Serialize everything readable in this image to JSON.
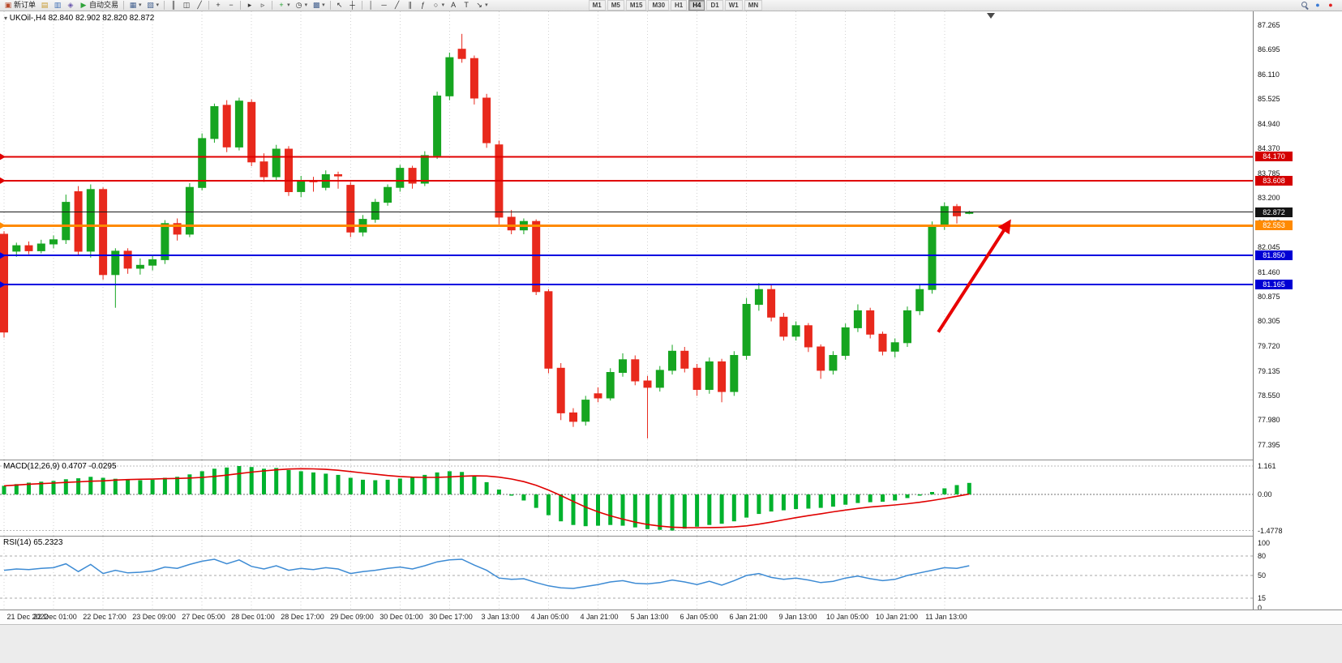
{
  "toolbar": {
    "left": [
      {
        "name": "new-order-button",
        "icon": "new-order-icon",
        "glyph": "▣",
        "glyph_color": "#b84a2b",
        "label": "新订单"
      },
      {
        "name": "market-watch-button",
        "icon": "market-watch-icon",
        "glyph": "▤",
        "glyph_color": "#c79a2e"
      },
      {
        "name": "data-window-button",
        "icon": "data-window-icon",
        "glyph": "▥",
        "glyph_color": "#3f6fb5"
      },
      {
        "name": "navigator-button",
        "icon": "navigator-icon",
        "glyph": "◈",
        "glyph_color": "#6a58ad"
      },
      {
        "name": "autotrading-button",
        "icon": "autotrading-play-icon",
        "glyph": "▶",
        "glyph_color": "#2fa33a",
        "label": "自动交易"
      },
      {
        "sep": true
      },
      {
        "name": "new-chart-button",
        "icon": "new-chart-icon",
        "glyph": "▦",
        "glyph_color": "#44618f",
        "dropdown": true
      },
      {
        "name": "profiles-button",
        "icon": "profiles-icon",
        "glyph": "▧",
        "glyph_color": "#44618f",
        "dropdown": true
      },
      {
        "sep": true
      },
      {
        "name": "bar-chart-button",
        "icon": "bar-chart-icon",
        "glyph": "║",
        "glyph_color": "#333333"
      },
      {
        "name": "candle-chart-button",
        "icon": "candlestick-chart-icon",
        "glyph": "◫",
        "glyph_color": "#333333"
      },
      {
        "name": "line-chart-button",
        "icon": "line-chart-icon",
        "glyph": "╱",
        "glyph_color": "#333333"
      },
      {
        "sep": true
      },
      {
        "name": "zoom-in-button",
        "icon": "zoom-in-icon",
        "glyph": "+",
        "glyph_color": "#333333"
      },
      {
        "name": "zoom-out-button",
        "icon": "zoom-out-icon",
        "glyph": "−",
        "glyph_color": "#333333"
      },
      {
        "sep": true
      },
      {
        "name": "auto-scroll-button",
        "icon": "auto-scroll-icon",
        "glyph": "▸",
        "glyph_color": "#333333"
      },
      {
        "name": "chart-shift-button",
        "icon": "chart-shift-icon",
        "glyph": "▹",
        "glyph_color": "#333333"
      },
      {
        "sep": true
      },
      {
        "name": "indicators-button",
        "icon": "indicators-plus-icon",
        "glyph": "+",
        "glyph_color": "#1d9e2c",
        "dropdown": true
      },
      {
        "name": "periods-button",
        "icon": "clock-icon",
        "glyph": "◷",
        "glyph_color": "#333333",
        "dropdown": true
      },
      {
        "name": "templates-button",
        "icon": "template-chart-icon",
        "glyph": "▩",
        "glyph_color": "#44618f",
        "dropdown": true
      },
      {
        "sep": true
      },
      {
        "name": "cursor-button",
        "icon": "cursor-icon",
        "glyph": "↖",
        "glyph_color": "#333333"
      },
      {
        "name": "crosshair-button",
        "icon": "crosshair-icon",
        "glyph": "┼",
        "glyph_color": "#333333"
      },
      {
        "sep": true
      },
      {
        "name": "vertical-line-button",
        "icon": "vertical-line-icon",
        "glyph": "│",
        "glyph_color": "#333333"
      },
      {
        "name": "horizontal-line-button",
        "icon": "horizontal-line-icon",
        "glyph": "─",
        "glyph_color": "#333333"
      },
      {
        "name": "trendline-button",
        "icon": "trendline-icon",
        "glyph": "╱",
        "glyph_color": "#333333"
      },
      {
        "name": "channel-button",
        "icon": "channel-icon",
        "glyph": "∥",
        "glyph_color": "#333333"
      },
      {
        "name": "fibonacci-button",
        "icon": "fibonacci-icon",
        "glyph": "ƒ",
        "glyph_color": "#333333"
      },
      {
        "name": "shapes-button",
        "icon": "ellipse-icon",
        "glyph": "○",
        "glyph_color": "#333333",
        "dropdown": true
      },
      {
        "name": "text-button",
        "icon": "text-icon",
        "glyph": "A",
        "glyph_color": "#333333"
      },
      {
        "name": "text-label-button",
        "icon": "label-icon",
        "glyph": "T",
        "glyph_color": "#333333"
      },
      {
        "name": "arrows-button",
        "icon": "arrow-icon",
        "glyph": "↘",
        "glyph_color": "#333333",
        "dropdown": true
      }
    ],
    "timeframes": [
      {
        "label": "M1"
      },
      {
        "label": "M5"
      },
      {
        "label": "M15"
      },
      {
        "label": "M30"
      },
      {
        "label": "H1"
      },
      {
        "label": "H4",
        "active": true
      },
      {
        "label": "D1"
      },
      {
        "label": "W1"
      },
      {
        "label": "MN"
      }
    ],
    "right": [
      {
        "name": "search-button",
        "icon": "search-icon",
        "magnifier": true
      },
      {
        "name": "community-button",
        "icon": "community-icon",
        "glyph": "●",
        "glyph_color": "#3a7bd5"
      },
      {
        "name": "record-button",
        "icon": "record-icon",
        "glyph": "●",
        "glyph_color": "#e02020"
      }
    ]
  },
  "chart": {
    "symbol_label": "UKOil-,H4 82.840 82.902 82.820 82.872",
    "macd_label": "MACD(12,26,9) 0.4707 -0.0295",
    "rsi_label": "RSI(14) 65.2323"
  },
  "price_axis": {
    "ticks": [
      "87.265",
      "86.695",
      "86.110",
      "85.525",
      "84.940",
      "84.370",
      "83.785",
      "83.200",
      "82.615",
      "82.045",
      "81.460",
      "80.875",
      "80.305",
      "79.720",
      "79.135",
      "78.550",
      "77.980",
      "77.395"
    ],
    "badges": [
      {
        "value": "84.170",
        "color": "#d40000"
      },
      {
        "value": "83.608",
        "color": "#d40000"
      },
      {
        "value": "82.872",
        "color": "#141414"
      },
      {
        "value": "82.553",
        "color": "#ff8a00"
      },
      {
        "value": "81.850",
        "color": "#0000d4"
      },
      {
        "value": "81.165",
        "color": "#0000d4"
      }
    ],
    "macd_ticks": [
      {
        "label": "1.161",
        "value": 1.161
      },
      {
        "label": "0.00",
        "value": 0
      },
      {
        "label": "-1.4778",
        "value": -1.4778
      }
    ],
    "rsi_ticks": [
      {
        "label": "100",
        "value": 100
      },
      {
        "label": "80",
        "value": 80
      },
      {
        "label": "50",
        "value": 50
      },
      {
        "label": "15",
        "value": 15
      },
      {
        "label": "0",
        "value": 0
      }
    ]
  },
  "hlines": [
    {
      "price": 84.17,
      "color": "#e00000",
      "width": 2,
      "marker": true
    },
    {
      "price": 83.608,
      "color": "#e00000",
      "width": 2,
      "marker": true
    },
    {
      "price": 82.872,
      "color": "#1a1a1a",
      "width": 1,
      "marker": false
    },
    {
      "price": 82.553,
      "color": "#ff8a00",
      "width": 3,
      "marker": true
    },
    {
      "price": 81.85,
      "color": "#0000e0",
      "width": 2,
      "marker": true
    },
    {
      "price": 81.165,
      "color": "#0000e0",
      "width": 2,
      "marker": true
    }
  ],
  "arrow": {
    "from_index": 75.5,
    "from_price": 80.05,
    "to_index": 81.2,
    "to_price": 82.62,
    "color": "#e80000"
  },
  "colors": {
    "up": "#16a520",
    "down": "#e8291c",
    "macd_bar": "#00b22d",
    "macd_signal": "#e00000",
    "rsi_line": "#3d8bd4",
    "grid": "#d2d2d2",
    "arrow": "#e80000"
  },
  "chart_data": {
    "type": "candlestick",
    "symbol": "UKOil-",
    "timeframe": "H4",
    "title": "UKOil-,H4",
    "price_range": [
      77.395,
      87.265
    ],
    "ohlc": [
      [
        82.35,
        82.42,
        79.92,
        80.05
      ],
      [
        81.95,
        82.15,
        81.82,
        82.08
      ],
      [
        82.08,
        82.18,
        81.88,
        81.96
      ],
      [
        81.96,
        82.22,
        81.9,
        82.12
      ],
      [
        82.12,
        82.32,
        82.02,
        82.22
      ],
      [
        82.22,
        83.28,
        82.12,
        83.1
      ],
      [
        83.35,
        83.48,
        81.85,
        81.95
      ],
      [
        81.95,
        83.52,
        81.8,
        83.4
      ],
      [
        83.4,
        83.45,
        81.28,
        81.4
      ],
      [
        81.4,
        82.02,
        80.62,
        81.95
      ],
      [
        81.95,
        82.02,
        81.42,
        81.55
      ],
      [
        81.55,
        81.78,
        81.4,
        81.62
      ],
      [
        81.62,
        81.85,
        81.5,
        81.75
      ],
      [
        81.75,
        82.68,
        81.65,
        82.6
      ],
      [
        82.6,
        82.72,
        82.2,
        82.35
      ],
      [
        82.35,
        83.55,
        82.28,
        83.45
      ],
      [
        83.45,
        84.72,
        83.38,
        84.6
      ],
      [
        84.6,
        85.42,
        84.5,
        85.35
      ],
      [
        85.38,
        85.5,
        84.28,
        84.4
      ],
      [
        84.4,
        85.56,
        84.32,
        85.48
      ],
      [
        85.45,
        85.52,
        83.95,
        84.05
      ],
      [
        84.05,
        84.25,
        83.58,
        83.7
      ],
      [
        83.7,
        84.45,
        83.62,
        84.35
      ],
      [
        84.35,
        84.42,
        83.25,
        83.35
      ],
      [
        83.35,
        83.72,
        83.22,
        83.6
      ],
      [
        83.6,
        83.7,
        83.35,
        83.58
      ],
      [
        83.45,
        83.85,
        83.38,
        83.75
      ],
      [
        83.75,
        83.82,
        83.42,
        83.72
      ],
      [
        83.5,
        83.58,
        82.28,
        82.4
      ],
      [
        82.4,
        82.8,
        82.3,
        82.7
      ],
      [
        82.7,
        83.18,
        82.62,
        83.1
      ],
      [
        83.1,
        83.52,
        83.02,
        83.45
      ],
      [
        83.45,
        83.98,
        83.35,
        83.9
      ],
      [
        83.9,
        83.96,
        83.42,
        83.55
      ],
      [
        83.55,
        84.3,
        83.48,
        84.2
      ],
      [
        84.2,
        85.7,
        84.12,
        85.6
      ],
      [
        85.6,
        86.62,
        85.5,
        86.5
      ],
      [
        86.7,
        87.06,
        86.38,
        86.48
      ],
      [
        86.48,
        86.55,
        85.4,
        85.55
      ],
      [
        85.55,
        85.65,
        84.38,
        84.5
      ],
      [
        84.45,
        84.55,
        82.58,
        82.75
      ],
      [
        82.75,
        82.92,
        82.35,
        82.45
      ],
      [
        82.45,
        82.72,
        82.35,
        82.65
      ],
      [
        82.65,
        82.7,
        80.92,
        81.0
      ],
      [
        81.0,
        81.06,
        79.08,
        79.2
      ],
      [
        79.2,
        79.32,
        77.98,
        78.15
      ],
      [
        78.15,
        78.26,
        77.82,
        77.95
      ],
      [
        77.95,
        78.55,
        77.85,
        78.45
      ],
      [
        78.6,
        78.75,
        78.4,
        78.5
      ],
      [
        78.5,
        79.2,
        78.44,
        79.1
      ],
      [
        79.1,
        79.55,
        79.0,
        79.4
      ],
      [
        79.4,
        79.5,
        78.8,
        78.9
      ],
      [
        78.9,
        79.02,
        77.55,
        78.75
      ],
      [
        78.75,
        79.25,
        78.65,
        79.15
      ],
      [
        79.15,
        79.75,
        79.05,
        79.6
      ],
      [
        79.6,
        79.7,
        79.1,
        79.2
      ],
      [
        79.2,
        79.3,
        78.55,
        78.7
      ],
      [
        78.7,
        79.45,
        78.6,
        79.35
      ],
      [
        79.35,
        79.42,
        78.4,
        78.65
      ],
      [
        78.65,
        79.6,
        78.55,
        79.5
      ],
      [
        79.5,
        80.85,
        79.4,
        80.7
      ],
      [
        80.7,
        81.2,
        80.55,
        81.05
      ],
      [
        81.05,
        81.15,
        80.3,
        80.4
      ],
      [
        80.4,
        80.5,
        79.85,
        79.95
      ],
      [
        79.95,
        80.3,
        79.85,
        80.2
      ],
      [
        80.2,
        80.26,
        79.58,
        79.7
      ],
      [
        79.7,
        79.76,
        78.95,
        79.15
      ],
      [
        79.15,
        79.6,
        79.05,
        79.5
      ],
      [
        79.5,
        80.25,
        79.4,
        80.15
      ],
      [
        80.15,
        80.7,
        80.05,
        80.55
      ],
      [
        80.55,
        80.62,
        79.9,
        80.0
      ],
      [
        80.0,
        80.06,
        79.5,
        79.6
      ],
      [
        79.6,
        79.9,
        79.45,
        79.8
      ],
      [
        79.8,
        80.65,
        79.7,
        80.55
      ],
      [
        80.55,
        81.15,
        80.45,
        81.05
      ],
      [
        81.05,
        82.65,
        80.95,
        82.55
      ],
      [
        82.55,
        83.1,
        82.45,
        83.0
      ],
      [
        83.0,
        83.06,
        82.6,
        82.78
      ],
      [
        82.84,
        82.902,
        82.82,
        82.872
      ]
    ],
    "time_labels": [
      {
        "text": "21 Dec 2022",
        "index": 0
      },
      {
        "text": "22 Dec 01:00",
        "index": 4
      },
      {
        "text": "22 Dec 17:00",
        "index": 8
      },
      {
        "text": "23 Dec 09:00",
        "index": 12
      },
      {
        "text": "27 Dec 05:00",
        "index": 16
      },
      {
        "text": "28 Dec 01:00",
        "index": 20
      },
      {
        "text": "28 Dec 17:00",
        "index": 24
      },
      {
        "text": "29 Dec 09:00",
        "index": 28
      },
      {
        "text": "30 Dec 01:00",
        "index": 32
      },
      {
        "text": "30 Dec 17:00",
        "index": 36
      },
      {
        "text": "3 Jan 13:00",
        "index": 40
      },
      {
        "text": "4 Jan 05:00",
        "index": 44
      },
      {
        "text": "4 Jan 21:00",
        "index": 48
      },
      {
        "text": "5 Jan 13:00",
        "index": 52
      },
      {
        "text": "6 Jan 05:00",
        "index": 56
      },
      {
        "text": "6 Jan 21:00",
        "index": 60
      },
      {
        "text": "9 Jan 13:00",
        "index": 64
      },
      {
        "text": "10 Jan 05:00",
        "index": 68
      },
      {
        "text": "10 Jan 21:00",
        "index": 72
      },
      {
        "text": "11 Jan 13:00",
        "index": 76
      }
    ],
    "indicators": {
      "macd": {
        "title": "MACD(12,26,9)",
        "current_main": 0.4707,
        "current_signal": -0.0295,
        "range": [
          -1.4778,
          1.161
        ],
        "signal_period": 9,
        "values": [
          0.35,
          0.42,
          0.48,
          0.52,
          0.55,
          0.62,
          0.66,
          0.72,
          0.68,
          0.64,
          0.6,
          0.58,
          0.6,
          0.68,
          0.72,
          0.82,
          0.95,
          1.05,
          1.1,
          1.16,
          1.12,
          1.05,
          1.08,
          1.0,
          0.95,
          0.9,
          0.85,
          0.8,
          0.68,
          0.6,
          0.58,
          0.6,
          0.65,
          0.7,
          0.8,
          0.9,
          0.95,
          0.92,
          0.75,
          0.5,
          0.2,
          -0.05,
          -0.25,
          -0.55,
          -0.85,
          -1.1,
          -1.25,
          -1.3,
          -1.28,
          -1.25,
          -1.28,
          -1.35,
          -1.42,
          -1.45,
          -1.4778,
          -1.4,
          -1.32,
          -1.25,
          -1.2,
          -1.1,
          -0.95,
          -0.8,
          -0.7,
          -0.65,
          -0.6,
          -0.58,
          -0.55,
          -0.5,
          -0.42,
          -0.35,
          -0.32,
          -0.3,
          -0.25,
          -0.15,
          -0.05,
          0.1,
          0.25,
          0.38,
          0.47
        ]
      },
      "rsi": {
        "title": "RSI(14)",
        "current": 65.2323,
        "range": [
          0,
          100
        ],
        "levels": [
          80,
          50,
          15
        ],
        "values": [
          58,
          60,
          59,
          61,
          62,
          68,
          56,
          67,
          53,
          58,
          54,
          55,
          57,
          63,
          61,
          67,
          72,
          75,
          68,
          74,
          64,
          60,
          65,
          58,
          61,
          59,
          62,
          60,
          53,
          56,
          58,
          61,
          63,
          60,
          65,
          71,
          74,
          75,
          66,
          58,
          46,
          44,
          45,
          39,
          34,
          31,
          30,
          33,
          36,
          40,
          42,
          38,
          37,
          39,
          43,
          40,
          36,
          41,
          35,
          42,
          50,
          53,
          47,
          44,
          46,
          43,
          39,
          41,
          46,
          49,
          45,
          42,
          44,
          50,
          54,
          58,
          62,
          61,
          65
        ]
      }
    }
  }
}
